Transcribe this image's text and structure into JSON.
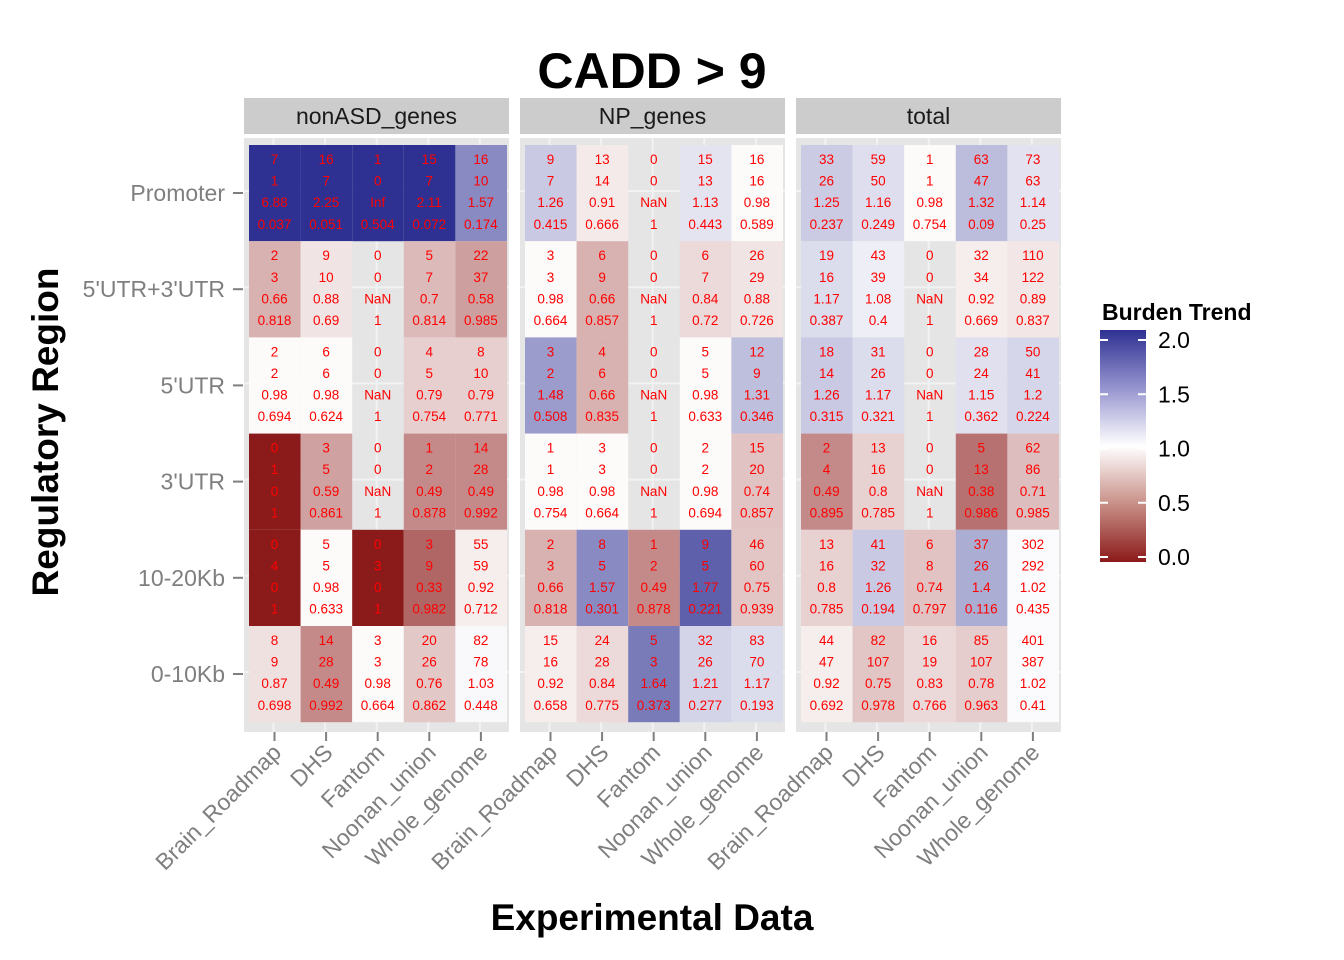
{
  "chart_data": {
    "type": "heatmap",
    "title": "CADD > 9",
    "xlabel": "Experimental Data",
    "ylabel": "Regulatory Region",
    "x_categories": [
      "Brain_Roadmap",
      "DHS",
      "Fantom",
      "Noonan_union",
      "Whole_genome"
    ],
    "y_categories": [
      "Promoter",
      "5'UTR+3'UTR",
      "5'UTR",
      "3'UTR",
      "10-20Kb",
      "0-10Kb"
    ],
    "legend": {
      "title": "Burden Trend",
      "ticks": [
        "2.0",
        "1.5",
        "1.0",
        "0.5",
        "0.0"
      ],
      "range": [
        0,
        2
      ],
      "colors": {
        "low": "#8b1a1a",
        "mid": "#ffffff",
        "high": "#2e3192"
      },
      "position": "right"
    },
    "grid": true,
    "panels": [
      {
        "name": "nonASD_genes",
        "rows": [
          [
            [
              "7",
              "1",
              "6.88",
              "0.037"
            ],
            [
              "16",
              "7",
              "2.25",
              "0.051"
            ],
            [
              "1",
              "0",
              "Inf",
              "0.504"
            ],
            [
              "15",
              "7",
              "2.11",
              "0.072"
            ],
            [
              "16",
              "10",
              "1.57",
              "0.174"
            ]
          ],
          [
            [
              "2",
              "3",
              "0.66",
              "0.818"
            ],
            [
              "9",
              "10",
              "0.88",
              "0.69"
            ],
            [
              "0",
              "0",
              "NaN",
              "1"
            ],
            [
              "5",
              "7",
              "0.7",
              "0.814"
            ],
            [
              "22",
              "37",
              "0.58",
              "0.985"
            ]
          ],
          [
            [
              "2",
              "2",
              "0.98",
              "0.694"
            ],
            [
              "6",
              "6",
              "0.98",
              "0.624"
            ],
            [
              "0",
              "0",
              "NaN",
              "1"
            ],
            [
              "4",
              "5",
              "0.79",
              "0.754"
            ],
            [
              "8",
              "10",
              "0.79",
              "0.771"
            ]
          ],
          [
            [
              "0",
              "1",
              "0",
              "1"
            ],
            [
              "3",
              "5",
              "0.59",
              "0.861"
            ],
            [
              "0",
              "0",
              "NaN",
              "1"
            ],
            [
              "1",
              "2",
              "0.49",
              "0.878"
            ],
            [
              "14",
              "28",
              "0.49",
              "0.992"
            ]
          ],
          [
            [
              "0",
              "4",
              "0",
              "1"
            ],
            [
              "5",
              "5",
              "0.98",
              "0.633"
            ],
            [
              "0",
              "3",
              "0",
              "1"
            ],
            [
              "3",
              "9",
              "0.33",
              "0.982"
            ],
            [
              "55",
              "59",
              "0.92",
              "0.712"
            ]
          ],
          [
            [
              "8",
              "9",
              "0.87",
              "0.698"
            ],
            [
              "14",
              "28",
              "0.49",
              "0.992"
            ],
            [
              "3",
              "3",
              "0.98",
              "0.664"
            ],
            [
              "20",
              "26",
              "0.76",
              "0.862"
            ],
            [
              "82",
              "78",
              "1.03",
              "0.448"
            ]
          ]
        ]
      },
      {
        "name": "NP_genes",
        "rows": [
          [
            [
              "9",
              "7",
              "1.26",
              "0.415"
            ],
            [
              "13",
              "14",
              "0.91",
              "0.666"
            ],
            [
              "0",
              "0",
              "NaN",
              "1"
            ],
            [
              "15",
              "13",
              "1.13",
              "0.443"
            ],
            [
              "16",
              "16",
              "0.98",
              "0.589"
            ]
          ],
          [
            [
              "3",
              "3",
              "0.98",
              "0.664"
            ],
            [
              "6",
              "9",
              "0.66",
              "0.857"
            ],
            [
              "0",
              "0",
              "NaN",
              "1"
            ],
            [
              "6",
              "7",
              "0.84",
              "0.72"
            ],
            [
              "26",
              "29",
              "0.88",
              "0.726"
            ]
          ],
          [
            [
              "3",
              "2",
              "1.48",
              "0.508"
            ],
            [
              "4",
              "6",
              "0.66",
              "0.835"
            ],
            [
              "0",
              "0",
              "NaN",
              "1"
            ],
            [
              "5",
              "5",
              "0.98",
              "0.633"
            ],
            [
              "12",
              "9",
              "1.31",
              "0.346"
            ]
          ],
          [
            [
              "1",
              "1",
              "0.98",
              "0.754"
            ],
            [
              "3",
              "3",
              "0.98",
              "0.664"
            ],
            [
              "0",
              "0",
              "NaN",
              "1"
            ],
            [
              "2",
              "2",
              "0.98",
              "0.694"
            ],
            [
              "15",
              "20",
              "0.74",
              "0.857"
            ]
          ],
          [
            [
              "2",
              "3",
              "0.66",
              "0.818"
            ],
            [
              "8",
              "5",
              "1.57",
              "0.301"
            ],
            [
              "1",
              "2",
              "0.49",
              "0.878"
            ],
            [
              "9",
              "5",
              "1.77",
              "0.221"
            ],
            [
              "46",
              "60",
              "0.75",
              "0.939"
            ]
          ],
          [
            [
              "15",
              "16",
              "0.92",
              "0.658"
            ],
            [
              "24",
              "28",
              "0.84",
              "0.775"
            ],
            [
              "5",
              "3",
              "1.64",
              "0.373"
            ],
            [
              "32",
              "26",
              "1.21",
              "0.277"
            ],
            [
              "83",
              "70",
              "1.17",
              "0.193"
            ]
          ]
        ]
      },
      {
        "name": "total",
        "rows": [
          [
            [
              "33",
              "26",
              "1.25",
              "0.237"
            ],
            [
              "59",
              "50",
              "1.16",
              "0.249"
            ],
            [
              "1",
              "1",
              "0.98",
              "0.754"
            ],
            [
              "63",
              "47",
              "1.32",
              "0.09"
            ],
            [
              "73",
              "63",
              "1.14",
              "0.25"
            ]
          ],
          [
            [
              "19",
              "16",
              "1.17",
              "0.387"
            ],
            [
              "43",
              "39",
              "1.08",
              "0.4"
            ],
            [
              "0",
              "0",
              "NaN",
              "1"
            ],
            [
              "32",
              "34",
              "0.92",
              "0.669"
            ],
            [
              "110",
              "122",
              "0.89",
              "0.837"
            ]
          ],
          [
            [
              "18",
              "14",
              "1.26",
              "0.315"
            ],
            [
              "31",
              "26",
              "1.17",
              "0.321"
            ],
            [
              "0",
              "0",
              "NaN",
              "1"
            ],
            [
              "28",
              "24",
              "1.15",
              "0.362"
            ],
            [
              "50",
              "41",
              "1.2",
              "0.224"
            ]
          ],
          [
            [
              "2",
              "4",
              "0.49",
              "0.895"
            ],
            [
              "13",
              "16",
              "0.8",
              "0.785"
            ],
            [
              "0",
              "0",
              "NaN",
              "1"
            ],
            [
              "5",
              "13",
              "0.38",
              "0.986"
            ],
            [
              "62",
              "86",
              "0.71",
              "0.985"
            ]
          ],
          [
            [
              "13",
              "16",
              "0.8",
              "0.785"
            ],
            [
              "41",
              "32",
              "1.26",
              "0.194"
            ],
            [
              "6",
              "8",
              "0.74",
              "0.797"
            ],
            [
              "37",
              "26",
              "1.4",
              "0.116"
            ],
            [
              "302",
              "292",
              "1.02",
              "0.435"
            ]
          ],
          [
            [
              "44",
              "47",
              "0.92",
              "0.692"
            ],
            [
              "82",
              "107",
              "0.75",
              "0.978"
            ],
            [
              "16",
              "19",
              "0.83",
              "0.766"
            ],
            [
              "85",
              "107",
              "0.78",
              "0.963"
            ],
            [
              "401",
              "387",
              "1.02",
              "0.41"
            ]
          ]
        ]
      }
    ]
  }
}
